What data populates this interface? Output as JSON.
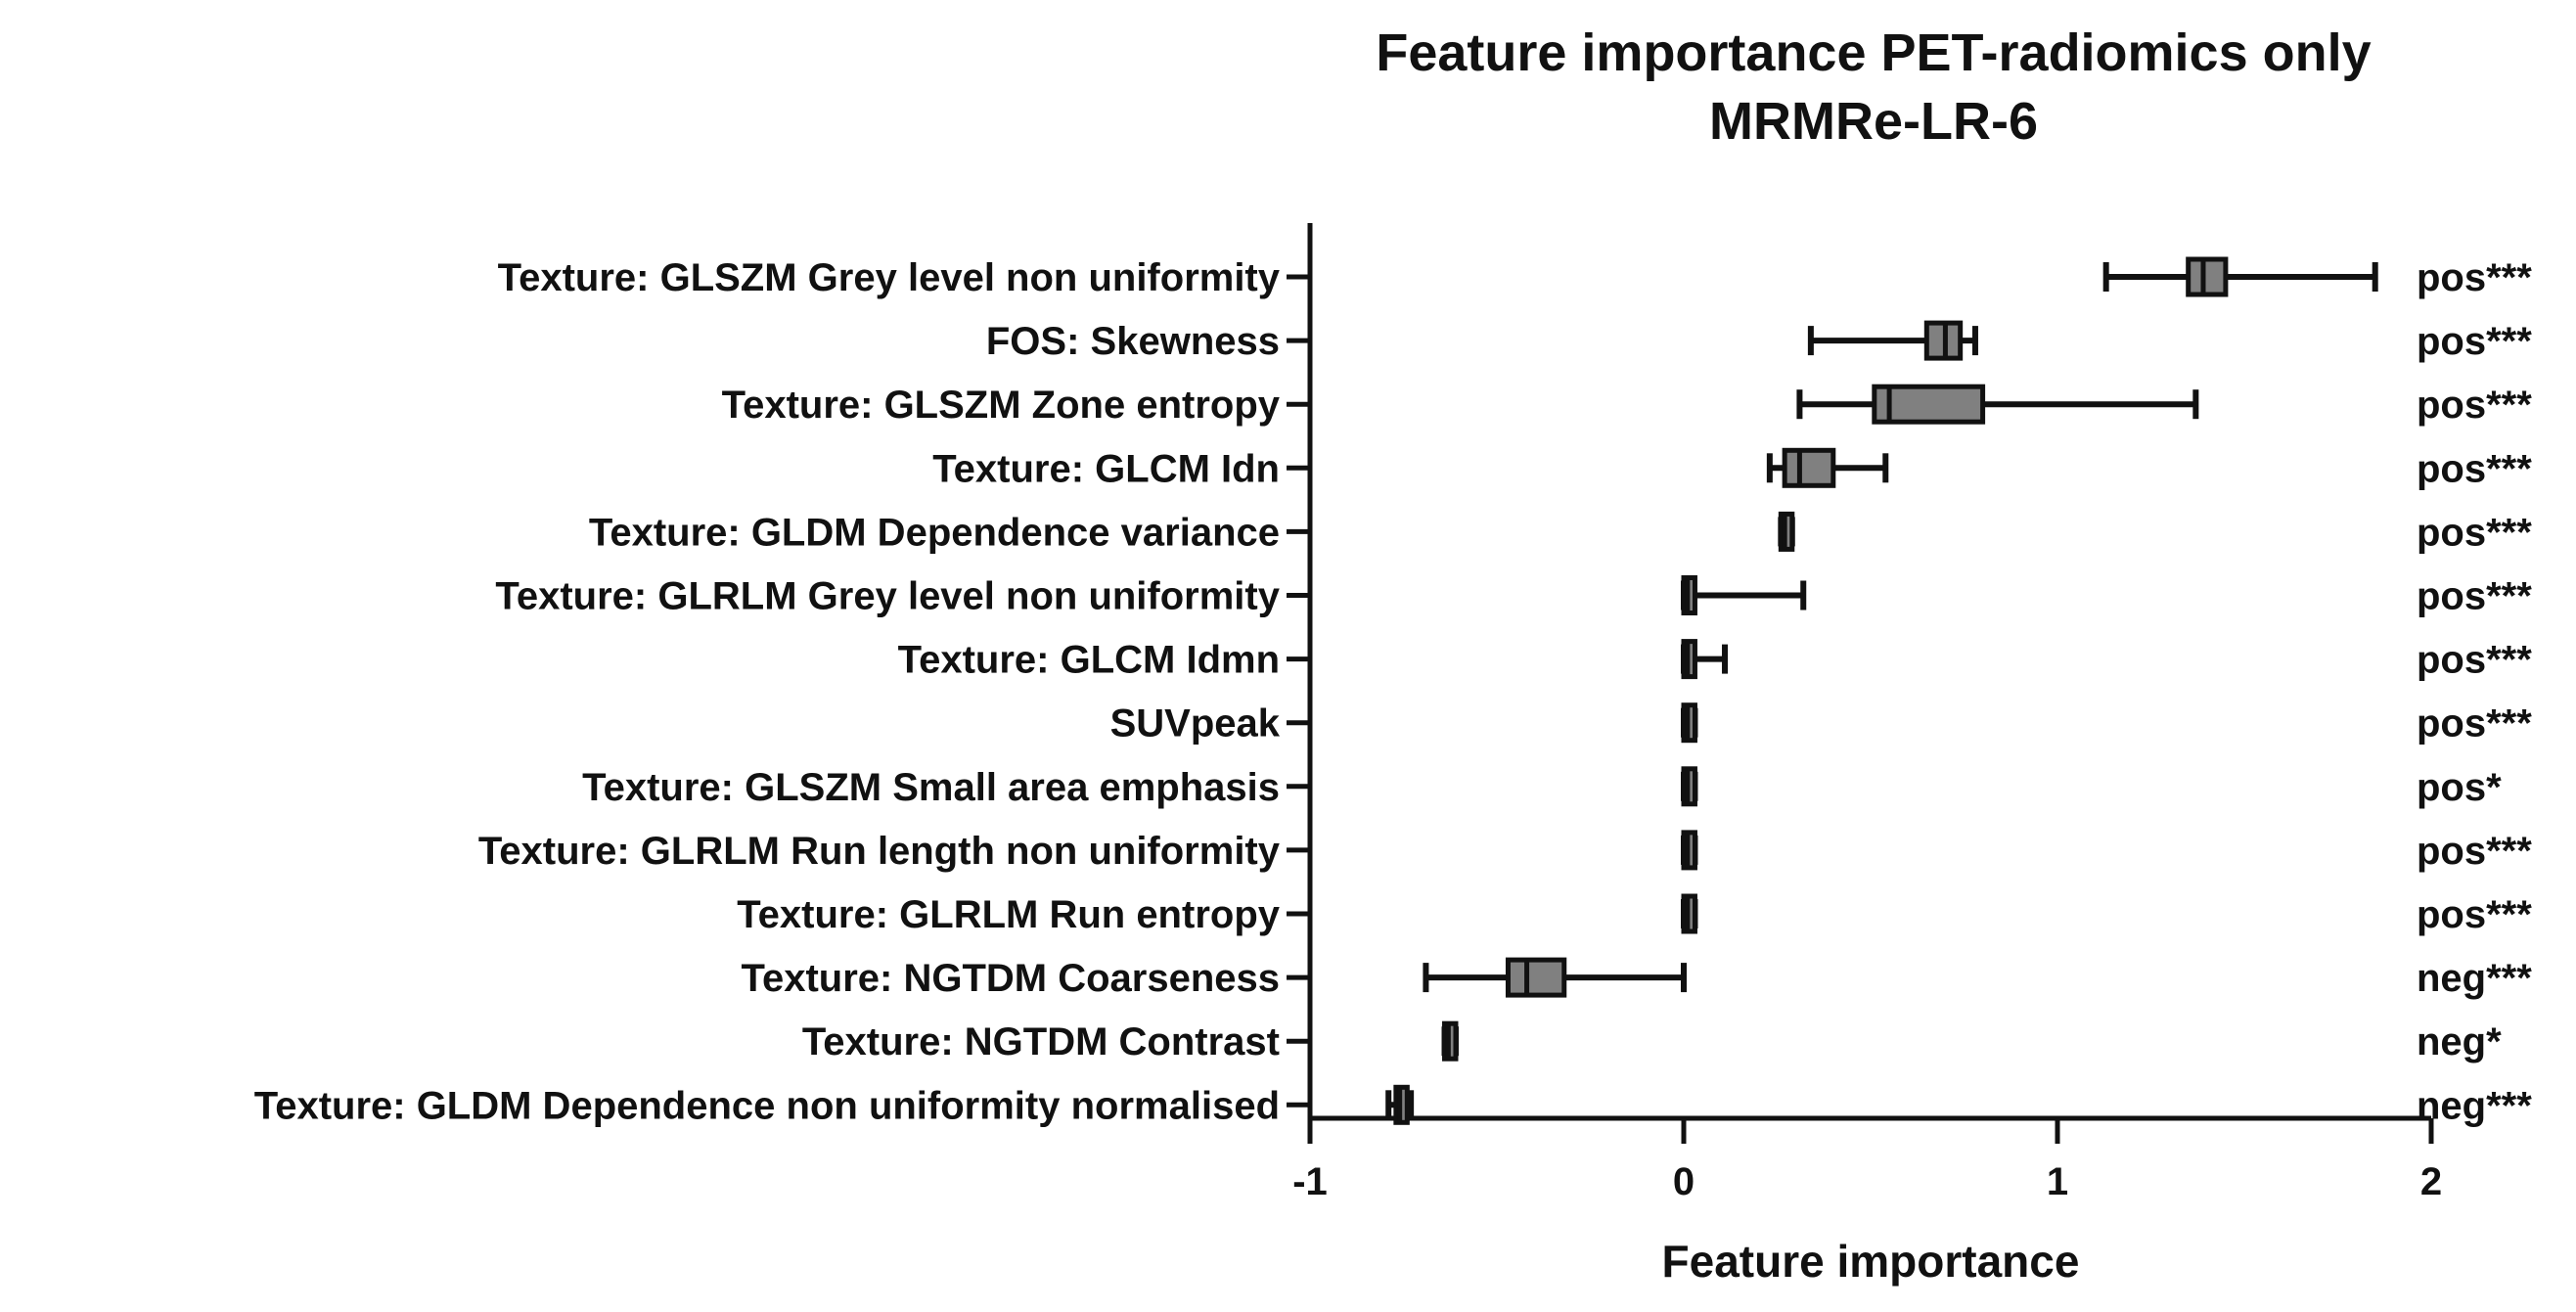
{
  "chart_data": {
    "type": "boxplot",
    "orientation": "horizontal",
    "title": [
      "Feature importance PET-radiomics only",
      "MRMRe-LR-6"
    ],
    "xlabel": "Feature importance",
    "ylabel": "",
    "xlim": [
      -1,
      2
    ],
    "xticks": [
      -1,
      0,
      1,
      2
    ],
    "xtick_labels": [
      "-1",
      "0",
      "1",
      "2"
    ],
    "grid": false,
    "legend": "none",
    "box_color": "#808080",
    "categories": [
      "Texture: GLSZM Grey level non uniformity",
      "FOS: Skewness",
      "Texture: GLSZM Zone entropy",
      "Texture: GLCM Idn",
      "Texture: GLDM Dependence variance",
      "Texture: GLRLM Grey level non uniformity",
      "Texture: GLCM Idmn",
      "SUVpeak",
      "Texture: GLSZM Small area emphasis",
      "Texture: GLRLM Run length non uniformity",
      "Texture: GLRLM Run entropy",
      "Texture: NGTDM Coarseness",
      "Texture: NGTDM Contrast",
      "Texture: GLDM Dependence non uniformity normalised"
    ],
    "significance": [
      "pos***",
      "pos***",
      "pos***",
      "pos***",
      "pos***",
      "pos***",
      "pos***",
      "pos***",
      "pos*",
      "pos***",
      "pos***",
      "neg***",
      "neg*",
      "neg***"
    ],
    "boxes": [
      {
        "min": 1.13,
        "q1": 1.35,
        "median": 1.39,
        "q3": 1.45,
        "max": 1.85
      },
      {
        "min": 0.34,
        "q1": 0.65,
        "median": 0.7,
        "q3": 0.74,
        "max": 0.78
      },
      {
        "min": 0.31,
        "q1": 0.51,
        "median": 0.55,
        "q3": 0.8,
        "max": 1.37
      },
      {
        "min": 0.23,
        "q1": 0.27,
        "median": 0.31,
        "q3": 0.4,
        "max": 0.54
      },
      {
        "min": 0.26,
        "q1": 0.26,
        "median": 0.27,
        "q3": 0.29,
        "max": 0.29
      },
      {
        "min": 0.0,
        "q1": 0.0,
        "median": 0.01,
        "q3": 0.03,
        "max": 0.32
      },
      {
        "min": 0.0,
        "q1": 0.0,
        "median": 0.01,
        "q3": 0.03,
        "max": 0.11
      },
      {
        "min": 0.0,
        "q1": 0.0,
        "median": 0.01,
        "q3": 0.03,
        "max": 0.03
      },
      {
        "min": 0.0,
        "q1": 0.0,
        "median": 0.01,
        "q3": 0.03,
        "max": 0.03
      },
      {
        "min": 0.0,
        "q1": 0.0,
        "median": 0.01,
        "q3": 0.03,
        "max": 0.03
      },
      {
        "min": 0.0,
        "q1": 0.0,
        "median": 0.01,
        "q3": 0.03,
        "max": 0.03
      },
      {
        "min": -0.69,
        "q1": -0.47,
        "median": -0.42,
        "q3": -0.32,
        "max": 0.0
      },
      {
        "min": -0.64,
        "q1": -0.64,
        "median": -0.63,
        "q3": -0.61,
        "max": -0.61
      },
      {
        "min": -0.79,
        "q1": -0.77,
        "median": -0.76,
        "q3": -0.74,
        "max": -0.73
      }
    ]
  }
}
